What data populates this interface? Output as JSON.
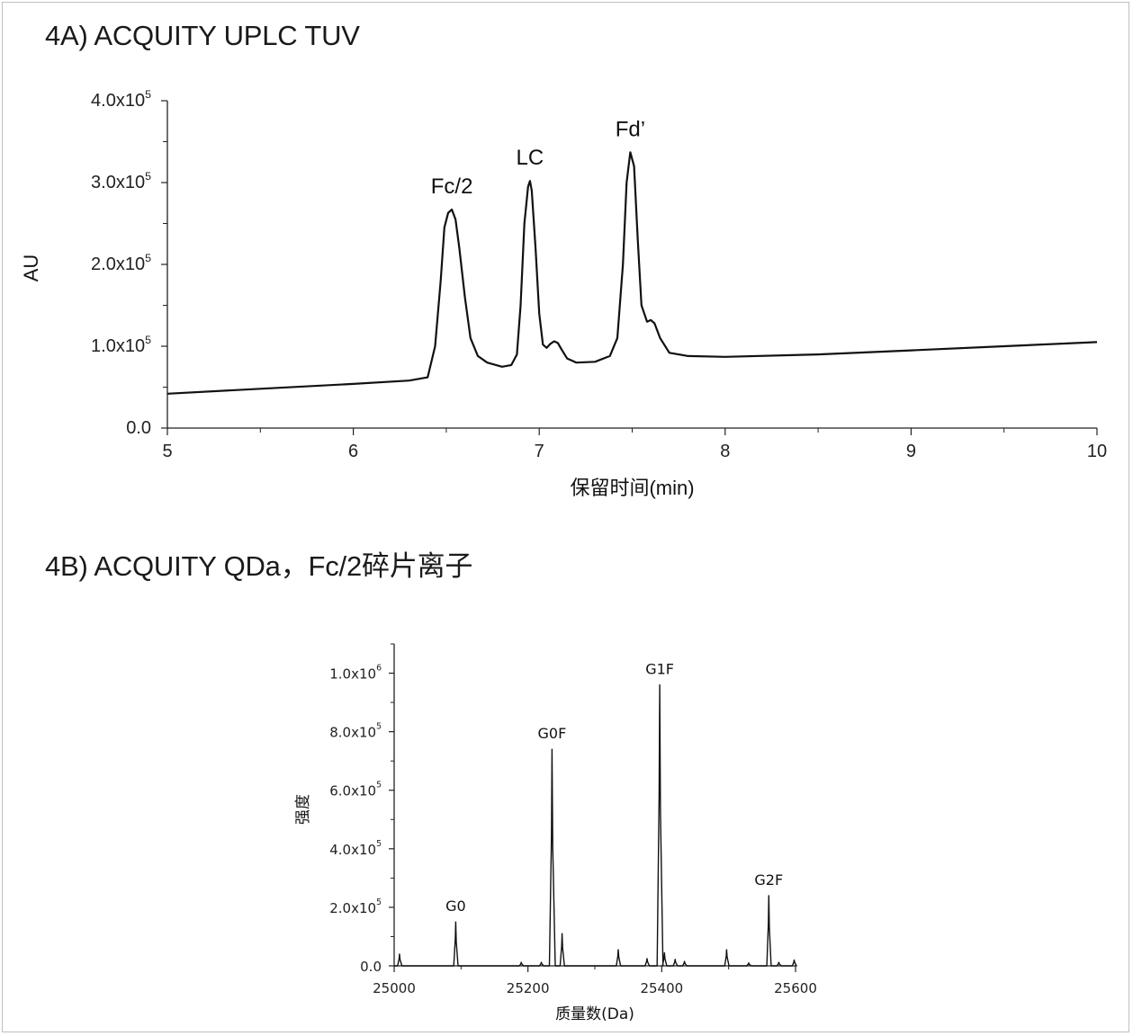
{
  "panel_a": {
    "title": "4A) ACQUITY UPLC TUV"
  },
  "panel_b": {
    "title": "4B) ACQUITY QDa，Fc/2碎片离子"
  },
  "chart_data": [
    {
      "type": "line",
      "xlabel": "保留时间(min)",
      "ylabel": "AU",
      "xlim": [
        5,
        10
      ],
      "ylim": [
        0,
        400000
      ],
      "x_ticks": [
        5,
        6,
        7,
        8,
        9,
        10
      ],
      "y_ticks": [
        {
          "value": 0,
          "label": "0.0",
          "exp": ""
        },
        {
          "value": 100000,
          "label": "1.0x10",
          "exp": "5"
        },
        {
          "value": 200000,
          "label": "2.0x10",
          "exp": "5"
        },
        {
          "value": 300000,
          "label": "3.0x10",
          "exp": "5"
        },
        {
          "value": 400000,
          "label": "4.0x10",
          "exp": "5"
        }
      ],
      "annotations": [
        {
          "text": "Fc/2",
          "x": 6.53,
          "y": 267000
        },
        {
          "text": "LC",
          "x": 6.95,
          "y": 302000
        },
        {
          "text": "Fd’",
          "x": 7.49,
          "y": 337000
        }
      ],
      "series": [
        {
          "x": [
            5.0,
            5.5,
            6.0,
            6.3,
            6.4,
            6.44,
            6.47,
            6.49,
            6.51,
            6.53,
            6.55,
            6.57,
            6.6,
            6.63,
            6.67,
            6.72,
            6.8,
            6.85,
            6.88,
            6.9,
            6.92,
            6.94,
            6.95,
            6.96,
            6.98,
            7.0,
            7.02,
            7.04,
            7.06,
            7.08,
            7.1,
            7.12,
            7.15,
            7.2,
            7.3,
            7.38,
            7.42,
            7.45,
            7.47,
            7.49,
            7.51,
            7.53,
            7.55,
            7.58,
            7.6,
            7.62,
            7.65,
            7.7,
            7.8,
            8.0,
            8.5,
            9.0,
            9.5,
            10.0
          ],
          "y": [
            42000,
            48000,
            54000,
            58000,
            62000,
            100000,
            180000,
            245000,
            263000,
            267000,
            255000,
            220000,
            160000,
            110000,
            88000,
            80000,
            75000,
            77000,
            90000,
            150000,
            250000,
            295000,
            302000,
            290000,
            220000,
            140000,
            102000,
            98000,
            103000,
            106000,
            104000,
            96000,
            85000,
            80000,
            81000,
            88000,
            110000,
            200000,
            300000,
            337000,
            320000,
            230000,
            150000,
            130000,
            132000,
            128000,
            110000,
            92000,
            88000,
            87000,
            90000,
            95000,
            100000,
            105000
          ]
        }
      ]
    },
    {
      "type": "line",
      "xlabel": "质量数(Da)",
      "ylabel": "强度",
      "xlim": [
        25000,
        25600
      ],
      "ylim": [
        0,
        1100000
      ],
      "x_ticks": [
        25000,
        25200,
        25400,
        25600
      ],
      "y_ticks": [
        {
          "value": 0,
          "label": "0.0",
          "exp": ""
        },
        {
          "value": 200000,
          "label": "2.0x10",
          "exp": "5"
        },
        {
          "value": 400000,
          "label": "4.0x10",
          "exp": "5"
        },
        {
          "value": 600000,
          "label": "6.0x10",
          "exp": "5"
        },
        {
          "value": 800000,
          "label": "8.0x10",
          "exp": "5"
        },
        {
          "value": 1000000,
          "label": "1.0x10",
          "exp": "6"
        }
      ],
      "annotations": [
        {
          "text": "G0",
          "x": 25092,
          "y": 150000
        },
        {
          "text": "G0F",
          "x": 25236,
          "y": 740000
        },
        {
          "text": "G1F",
          "x": 25397,
          "y": 960000
        },
        {
          "text": "G2F",
          "x": 25560,
          "y": 240000
        }
      ],
      "peaks": [
        {
          "x": 25008,
          "y": 40000
        },
        {
          "x": 25092,
          "y": 150000
        },
        {
          "x": 25190,
          "y": 12000
        },
        {
          "x": 25220,
          "y": 12000
        },
        {
          "x": 25236,
          "y": 740000
        },
        {
          "x": 25251,
          "y": 110000
        },
        {
          "x": 25335,
          "y": 55000
        },
        {
          "x": 25378,
          "y": 25000
        },
        {
          "x": 25397,
          "y": 960000
        },
        {
          "x": 25404,
          "y": 45000
        },
        {
          "x": 25420,
          "y": 22000
        },
        {
          "x": 25434,
          "y": 15000
        },
        {
          "x": 25497,
          "y": 55000
        },
        {
          "x": 25530,
          "y": 10000
        },
        {
          "x": 25560,
          "y": 240000
        },
        {
          "x": 25575,
          "y": 12000
        },
        {
          "x": 25598,
          "y": 20000
        }
      ]
    }
  ]
}
